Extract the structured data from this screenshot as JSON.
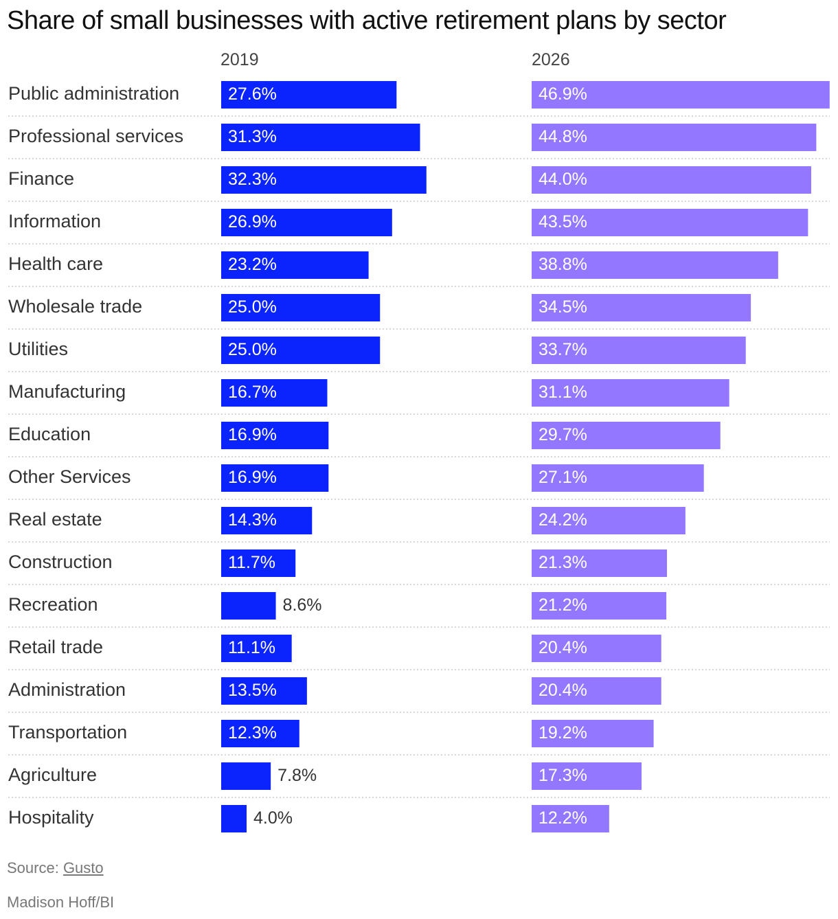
{
  "chart_data": {
    "type": "bar",
    "title": "Share of small businesses with active retirement plans by sector",
    "categories": [
      "Public administration",
      "Professional services",
      "Finance",
      "Information",
      "Health care",
      "Wholesale trade",
      "Utilities",
      "Manufacturing",
      "Education",
      "Other Services",
      "Real estate",
      "Construction",
      "Recreation",
      "Retail trade",
      "Administration",
      "Transportation",
      "Agriculture",
      "Hospitality"
    ],
    "series": [
      {
        "name": "2019",
        "color": "#0b24fb",
        "values": [
          27.6,
          31.3,
          32.3,
          26.9,
          23.2,
          25.0,
          25.0,
          16.7,
          16.9,
          16.9,
          14.3,
          11.7,
          8.6,
          11.1,
          13.5,
          12.3,
          7.8,
          4.0
        ],
        "labels": [
          "27.6%",
          "31.3%",
          "32.3%",
          "26.9%",
          "23.2%",
          "25.0%",
          "25.0%",
          "16.7%",
          "16.9%",
          "16.9%",
          "14.3%",
          "11.7%",
          "8.6%",
          "11.1%",
          "13.5%",
          "12.3%",
          "7.8%",
          "4.0%"
        ]
      },
      {
        "name": "2026",
        "color": "#9377ff",
        "values": [
          46.9,
          44.8,
          44.0,
          43.5,
          38.8,
          34.5,
          33.7,
          31.1,
          29.7,
          27.1,
          24.2,
          21.3,
          21.2,
          20.4,
          20.4,
          19.2,
          17.3,
          12.2
        ],
        "labels": [
          "46.9%",
          "44.8%",
          "44.0%",
          "43.5%",
          "38.8%",
          "34.5%",
          "33.7%",
          "31.1%",
          "29.7%",
          "27.1%",
          "24.2%",
          "21.3%",
          "21.2%",
          "20.4%",
          "20.4%",
          "19.2%",
          "17.3%",
          "12.2%"
        ]
      }
    ],
    "xlabel": "",
    "ylabel": "",
    "grid": false
  },
  "footer": {
    "source_prefix": "Source: ",
    "source_link": "Gusto",
    "credit": "Madison Hoff/BI"
  }
}
